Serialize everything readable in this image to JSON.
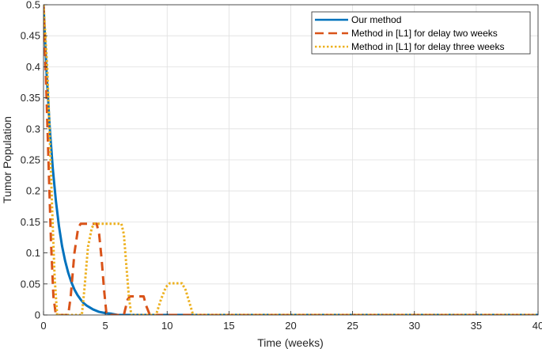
{
  "chart_data": {
    "type": "line",
    "xlabel": "Time (weeks)",
    "ylabel": "Tumor Population",
    "xlim": [
      0,
      40
    ],
    "ylim": [
      0,
      0.5
    ],
    "xticks": [
      0,
      5,
      10,
      15,
      20,
      25,
      30,
      35,
      40
    ],
    "yticks": [
      0,
      0.05,
      0.1,
      0.15,
      0.2,
      0.25,
      0.3,
      0.35,
      0.4,
      0.45,
      0.5
    ],
    "grid": true,
    "legend_position": "top-right",
    "series": [
      {
        "name": "Our method",
        "color": "#0072BD",
        "style": "solid",
        "x": [
          0,
          0.25,
          0.5,
          0.75,
          1,
          1.25,
          1.5,
          1.75,
          2,
          2.25,
          2.5,
          2.75,
          3,
          3.25,
          3.5,
          3.75,
          4,
          4.5,
          5,
          5.5,
          6,
          40
        ],
        "y": [
          0.5,
          0.389,
          0.303,
          0.236,
          0.184,
          0.143,
          0.111,
          0.087,
          0.068,
          0.053,
          0.041,
          0.032,
          0.025,
          0.019,
          0.015,
          0.012,
          0.009,
          0.005,
          0.003,
          0.002,
          0,
          0
        ]
      },
      {
        "name": "Method in [L1] for delay two weeks",
        "color": "#D95319",
        "style": "dashed",
        "x": [
          0,
          0.2,
          0.4,
          0.6,
          0.8,
          1.0,
          2.0,
          2.2,
          2.5,
          2.8,
          3.0,
          4.3,
          4.5,
          4.7,
          4.9,
          5.1,
          6.5,
          6.8,
          7.0,
          8.1,
          8.3,
          8.6,
          40
        ],
        "y": [
          0.5,
          0.38,
          0.25,
          0.12,
          0.03,
          0,
          0,
          0.03,
          0.1,
          0.14,
          0.147,
          0.147,
          0.13,
          0.09,
          0.04,
          0,
          0,
          0.025,
          0.03,
          0.03,
          0.015,
          0,
          0
        ]
      },
      {
        "name": "Method in [L1] for delay three weeks",
        "color": "#EDB120",
        "style": "dotted",
        "x": [
          0,
          0.3,
          0.5,
          0.7,
          0.9,
          1.1,
          3.1,
          3.3,
          3.6,
          3.9,
          4.1,
          6.3,
          6.5,
          6.7,
          6.9,
          7.1,
          9.1,
          9.5,
          9.9,
          10.2,
          11.2,
          11.5,
          11.8,
          12.1,
          40
        ],
        "y": [
          0.5,
          0.4,
          0.29,
          0.17,
          0.06,
          0,
          0,
          0.04,
          0.11,
          0.14,
          0.147,
          0.147,
          0.13,
          0.08,
          0.03,
          0,
          0,
          0.025,
          0.045,
          0.051,
          0.051,
          0.04,
          0.02,
          0,
          0
        ]
      }
    ]
  }
}
